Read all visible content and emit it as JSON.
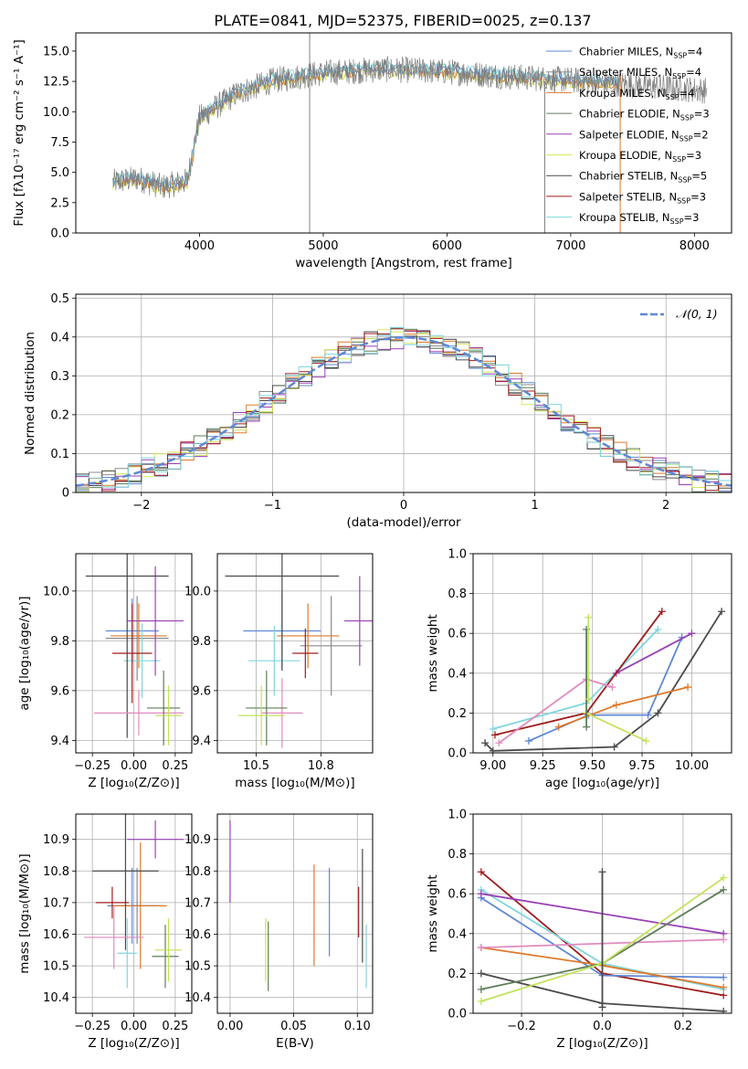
{
  "figure_title": "PLATE=0841, MJD=52375, FIBERID=0025, z=0.137",
  "palette": {
    "Chabrier MILES": "#5f88d4",
    "Salpeter MILES": "#8c8c8c",
    "Kroupa MILES": "#dd7a2b",
    "Chabrier ELODIE": "#5d7d57",
    "Salpeter ELODIE": "#9a3fb5",
    "Kroupa ELODIE": "#d6e85a",
    "Chabrier STELIB": "#4a4a4a",
    "Salpeter STELIB": "#a01c1c",
    "Kroupa STELIB": "#80d6dc",
    "pink": "#e08bbf",
    "lime": "#c3e35a",
    "gauss": "#5f88d4"
  },
  "chart_data": [
    {
      "id": "spectrum",
      "type": "line",
      "title": "PLATE=0841, MJD=52375, FIBERID=0025, z=0.137",
      "xlabel": "wavelength [Angstrom, rest frame]",
      "ylabel": "Flux [fλ10⁻¹⁷ erg cm⁻² s⁻¹ A⁻¹]",
      "xlim": [
        3000,
        8300
      ],
      "ylim": [
        0,
        16.5
      ],
      "xticks": [
        4000,
        5000,
        6000,
        7000,
        8000
      ],
      "yticks": [
        0.0,
        2.5,
        5.0,
        7.5,
        10.0,
        12.5,
        15.0
      ],
      "legend_position": "upper-right",
      "legend": [
        "Chabrier MILES, N_SSP=4",
        "Salpeter MILES, N_SSP=4",
        "Kroupa MILES, N_SSP=4",
        "Chabrier ELODIE, N_SSP=3",
        "Salpeter ELODIE, N_SSP=2",
        "Kroupa ELODIE, N_SSP=3",
        "Chabrier STELIB, N_SSP=5",
        "Salpeter STELIB, N_SSP=3",
        "Kroupa STELIB, N_SSP=3"
      ],
      "continuum": {
        "x": [
          3300,
          3500,
          3700,
          3900,
          4000,
          4300,
          4600,
          5000,
          5500,
          6000,
          6500,
          7000,
          7400
        ],
        "y": [
          4.2,
          4.5,
          3.8,
          4.3,
          9.5,
          11.5,
          12.6,
          13.2,
          13.5,
          13.3,
          12.9,
          12.6,
          12.3
        ]
      },
      "data_range": [
        3300,
        8100
      ],
      "spikes": [
        {
          "x": 4890,
          "y": 16.5
        },
        {
          "x": 6790,
          "y": 12.5
        },
        {
          "x": 7400,
          "y": 13.0
        }
      ]
    },
    {
      "id": "residuals",
      "type": "line",
      "xlabel": "(data-model)/error",
      "ylabel": "Normed distribution",
      "xlim": [
        -2.5,
        2.5
      ],
      "ylim": [
        0,
        0.51
      ],
      "xticks": [
        -2,
        -1,
        0,
        1,
        2
      ],
      "yticks": [
        0.0,
        0.1,
        0.2,
        0.3,
        0.4,
        0.5
      ],
      "grid": true,
      "legend_position": "upper-right",
      "legend": [
        "𝒩(0, 1)"
      ],
      "bin_width": 0.1
    },
    {
      "id": "age_vs_Z",
      "type": "scatter",
      "xlabel": "Z [log₁₀(Z/Z⊙)]",
      "ylabel": "age  [log₁₀(age/yr)]",
      "xlim": [
        -0.35,
        0.35
      ],
      "ylim": [
        9.35,
        10.15
      ],
      "xticks": [
        -0.25,
        0.0,
        0.25
      ],
      "yticks": [
        9.4,
        9.6,
        9.8,
        10.0
      ],
      "grid": true,
      "points": [
        {
          "x": 0.02,
          "y": 9.81,
          "xerr": 0.19,
          "yerr": 0.17,
          "color": "#8c8c8c"
        },
        {
          "x": -0.01,
          "y": 9.84,
          "xerr": 0.16,
          "yerr": 0.13,
          "color": "#5f88d4"
        },
        {
          "x": 0.03,
          "y": 9.82,
          "xerr": 0.17,
          "yerr": 0.13,
          "color": "#dd7a2b"
        },
        {
          "x": 0.05,
          "y": 9.72,
          "xerr": 0.11,
          "yerr": 0.15,
          "color": "#80d6dc"
        },
        {
          "x": 0.13,
          "y": 9.88,
          "xerr": 0.17,
          "yerr": 0.22,
          "color": "#9a3fb5"
        },
        {
          "x": -0.04,
          "y": 10.06,
          "xerr": 0.25,
          "yerr": 0.65,
          "color": "#4a4a4a"
        },
        {
          "x": -0.01,
          "y": 9.75,
          "xerr": 0.12,
          "yerr": 0.2,
          "color": "#a01c1c"
        },
        {
          "x": 0.03,
          "y": 9.51,
          "xerr": 0.27,
          "yerr": 0.09,
          "color": "#e08bbf"
        },
        {
          "x": 0.18,
          "y": 9.53,
          "xerr": 0.1,
          "yerr": 0.15,
          "color": "#5d7d57"
        },
        {
          "x": 0.21,
          "y": 9.5,
          "xerr": 0.08,
          "yerr": 0.12,
          "color": "#c3e35a"
        }
      ]
    },
    {
      "id": "age_vs_mass",
      "type": "scatter",
      "xlabel": "mass [log₁₀(M/M⊙)]",
      "ylabel": "",
      "xlim": [
        10.35,
        10.95
      ],
      "ylim": [
        9.35,
        10.15
      ],
      "xticks": [
        10.5,
        10.75
      ],
      "yticks": [
        9.4,
        9.6,
        9.8,
        10.0
      ],
      "grid": true,
      "points": [
        {
          "x": 10.79,
          "y": 9.78,
          "xerr": 0.12,
          "yerr": 0.2,
          "color": "#8c8c8c"
        },
        {
          "x": 10.6,
          "y": 9.84,
          "xerr": 0.15,
          "yerr": 0.15,
          "color": "#5f88d4"
        },
        {
          "x": 10.7,
          "y": 9.82,
          "xerr": 0.12,
          "yerr": 0.13,
          "color": "#dd7a2b"
        },
        {
          "x": 10.57,
          "y": 9.72,
          "xerr": 0.1,
          "yerr": 0.14,
          "color": "#80d6dc"
        },
        {
          "x": 10.9,
          "y": 9.88,
          "xerr": 0.06,
          "yerr": 0.18,
          "color": "#9a3fb5"
        },
        {
          "x": 10.6,
          "y": 10.06,
          "xerr": 0.22,
          "yerr": 0.38,
          "color": "#4a4a4a"
        },
        {
          "x": 10.69,
          "y": 9.75,
          "xerr": 0.05,
          "yerr": 0.1,
          "color": "#a01c1c"
        },
        {
          "x": 10.6,
          "y": 9.51,
          "xerr": 0.08,
          "yerr": 0.14,
          "color": "#e08bbf"
        },
        {
          "x": 10.54,
          "y": 9.53,
          "xerr": 0.08,
          "yerr": 0.15,
          "color": "#5d7d57"
        },
        {
          "x": 10.52,
          "y": 9.5,
          "xerr": 0.09,
          "yerr": 0.12,
          "color": "#c3e35a"
        }
      ]
    },
    {
      "id": "mw_vs_age",
      "type": "line",
      "xlabel": "age  [log₁₀(age/yr)]",
      "ylabel": "mass weight",
      "xlim": [
        8.9,
        10.2
      ],
      "ylim": [
        0,
        1.0
      ],
      "xticks": [
        9.0,
        9.25,
        9.5,
        9.75,
        10.0
      ],
      "yticks": [
        0.0,
        0.2,
        0.4,
        0.6,
        0.8,
        1.0
      ],
      "grid": true,
      "series": [
        {
          "color": "#4a4a4a",
          "x": [
            8.96,
            9.0,
            9.61,
            9.83,
            10.15
          ],
          "y": [
            0.05,
            0.01,
            0.03,
            0.2,
            0.71
          ]
        },
        {
          "color": "#5f88d4",
          "x": [
            9.18,
            9.48,
            9.78,
            9.95
          ],
          "y": [
            0.06,
            0.19,
            0.19,
            0.58
          ]
        },
        {
          "color": "#dd7a2b",
          "x": [
            9.33,
            9.62,
            9.98
          ],
          "y": [
            0.13,
            0.24,
            0.33
          ]
        },
        {
          "color": "#80d6dc",
          "x": [
            9.0,
            9.47,
            9.83
          ],
          "y": [
            0.12,
            0.25,
            0.62
          ]
        },
        {
          "color": "#9a3fb5",
          "x": [
            9.62,
            10.0
          ],
          "y": [
            0.4,
            0.6
          ]
        },
        {
          "color": "#a01c1c",
          "x": [
            9.01,
            9.47,
            9.85
          ],
          "y": [
            0.09,
            0.2,
            0.71
          ]
        },
        {
          "color": "#c3e35a",
          "x": [
            9.47,
            9.77
          ],
          "y": [
            0.2,
            0.06
          ]
        },
        {
          "color": "#e08bbf",
          "x": [
            9.03,
            9.47,
            9.6
          ],
          "y": [
            0.05,
            0.37,
            0.33
          ]
        },
        {
          "color": "#5d7d57",
          "x": [
            9.47,
            9.47
          ],
          "y": [
            0.62,
            0.13
          ]
        },
        {
          "color": "#c3e35a",
          "x": [
            9.48,
            9.48
          ],
          "y": [
            0.68,
            0.27
          ]
        }
      ]
    },
    {
      "id": "mass_vs_Z",
      "type": "scatter",
      "xlabel": "Z [log₁₀(Z/Z⊙)]",
      "ylabel": "mass [log₁₀(M/M⊙)]",
      "xlim": [
        -0.35,
        0.35
      ],
      "ylim": [
        10.35,
        10.98
      ],
      "xticks": [
        -0.25,
        0.0,
        0.25
      ],
      "yticks": [
        10.4,
        10.5,
        10.6,
        10.7,
        10.8,
        10.9
      ],
      "grid": true,
      "points": [
        {
          "x": 0.02,
          "y": 10.69,
          "xerr": 0.15,
          "yerr": 0.12,
          "color": "#8c8c8c"
        },
        {
          "x": -0.01,
          "y": 10.69,
          "xerr": 0.15,
          "yerr": 0.12,
          "color": "#5f88d4"
        },
        {
          "x": 0.04,
          "y": 10.69,
          "xerr": 0.16,
          "yerr": 0.2,
          "color": "#dd7a2b"
        },
        {
          "x": -0.04,
          "y": 10.54,
          "xerr": 0.06,
          "yerr": 0.11,
          "color": "#80d6dc"
        },
        {
          "x": 0.13,
          "y": 10.9,
          "xerr": 0.17,
          "yerr": 0.06,
          "color": "#9a3fb5"
        },
        {
          "x": -0.05,
          "y": 10.8,
          "xerr": 0.2,
          "yerr": 0.25,
          "color": "#4a4a4a"
        },
        {
          "x": -0.13,
          "y": 10.7,
          "xerr": 0.1,
          "yerr": 0.05,
          "color": "#a01c1c"
        },
        {
          "x": -0.12,
          "y": 10.59,
          "xerr": 0.18,
          "yerr": 0.1,
          "color": "#e08bbf"
        },
        {
          "x": 0.19,
          "y": 10.53,
          "xerr": 0.08,
          "yerr": 0.1,
          "color": "#5d7d57"
        },
        {
          "x": 0.21,
          "y": 10.55,
          "xerr": 0.08,
          "yerr": 0.1,
          "color": "#c3e35a"
        }
      ]
    },
    {
      "id": "mass_vs_ebv",
      "type": "scatter",
      "xlabel": "E(B-V)",
      "ylabel": "",
      "xlim": [
        -0.01,
        0.112
      ],
      "ylim": [
        10.35,
        10.98
      ],
      "xticks": [
        0.0,
        0.05,
        0.1
      ],
      "yticks": [
        10.4,
        10.5,
        10.6,
        10.7,
        10.8,
        10.9
      ],
      "grid": true,
      "points": [
        {
          "x": 0.0,
          "y": 10.83,
          "xerr": 0,
          "yerr": 0.13,
          "color": "#9a3fb5"
        },
        {
          "x": 0.028,
          "y": 10.55,
          "xerr": 0,
          "yerr": 0.1,
          "color": "#c3e35a"
        },
        {
          "x": 0.03,
          "y": 10.53,
          "xerr": 0,
          "yerr": 0.11,
          "color": "#5d7d57"
        },
        {
          "x": 0.066,
          "y": 10.66,
          "xerr": 0,
          "yerr": 0.16,
          "color": "#dd7a2b"
        },
        {
          "x": 0.078,
          "y": 10.67,
          "xerr": 0,
          "yerr": 0.14,
          "color": "#5f88d4"
        },
        {
          "x": 0.101,
          "y": 10.67,
          "xerr": 0,
          "yerr": 0.08,
          "color": "#a01c1c"
        },
        {
          "x": 0.104,
          "y": 10.69,
          "xerr": 0,
          "yerr": 0.18,
          "color": "#4a4a4a"
        },
        {
          "x": 0.107,
          "y": 10.53,
          "xerr": 0,
          "yerr": 0.1,
          "color": "#80d6dc"
        }
      ]
    },
    {
      "id": "mw_vs_Z",
      "type": "line",
      "xlabel": "Z [log₁₀(Z/Z⊙)]",
      "ylabel": "mass weight",
      "xlim": [
        -0.32,
        0.32
      ],
      "ylim": [
        0,
        1.0
      ],
      "xticks": [
        -0.2,
        0.0,
        0.2
      ],
      "yticks": [
        0.0,
        0.2,
        0.4,
        0.6,
        0.8,
        1.0
      ],
      "grid": true,
      "series": [
        {
          "color": "#a01c1c",
          "x": [
            -0.3,
            0.0,
            0.3
          ],
          "y": [
            0.71,
            0.2,
            0.09
          ]
        },
        {
          "color": "#5f88d4",
          "x": [
            -0.3,
            0.0,
            0.3
          ],
          "y": [
            0.58,
            0.19,
            0.18
          ]
        },
        {
          "color": "#80d6dc",
          "x": [
            -0.3,
            0.0,
            0.3
          ],
          "y": [
            0.62,
            0.25,
            0.12
          ]
        },
        {
          "color": "#9a3fb5",
          "x": [
            -0.3,
            0.3
          ],
          "y": [
            0.6,
            0.4
          ]
        },
        {
          "color": "#dd7a2b",
          "x": [
            -0.3,
            0.0,
            0.3
          ],
          "y": [
            0.33,
            0.24,
            0.13
          ]
        },
        {
          "color": "#e08bbf",
          "x": [
            -0.3,
            0.3
          ],
          "y": [
            0.33,
            0.37
          ]
        },
        {
          "color": "#4a4a4a",
          "x": [
            -0.3,
            0.0,
            0.3
          ],
          "y": [
            0.2,
            0.05,
            0.01
          ]
        },
        {
          "color": "#5d7d57",
          "x": [
            -0.3,
            0.0,
            0.3
          ],
          "y": [
            0.12,
            0.25,
            0.62
          ]
        },
        {
          "color": "#c3e35a",
          "x": [
            -0.3,
            0.0,
            0.3
          ],
          "y": [
            0.06,
            0.25,
            0.68
          ]
        },
        {
          "color": "#4a4a4a",
          "x": [
            0.0,
            0.0
          ],
          "y": [
            0.71,
            0.03
          ]
        }
      ]
    }
  ]
}
